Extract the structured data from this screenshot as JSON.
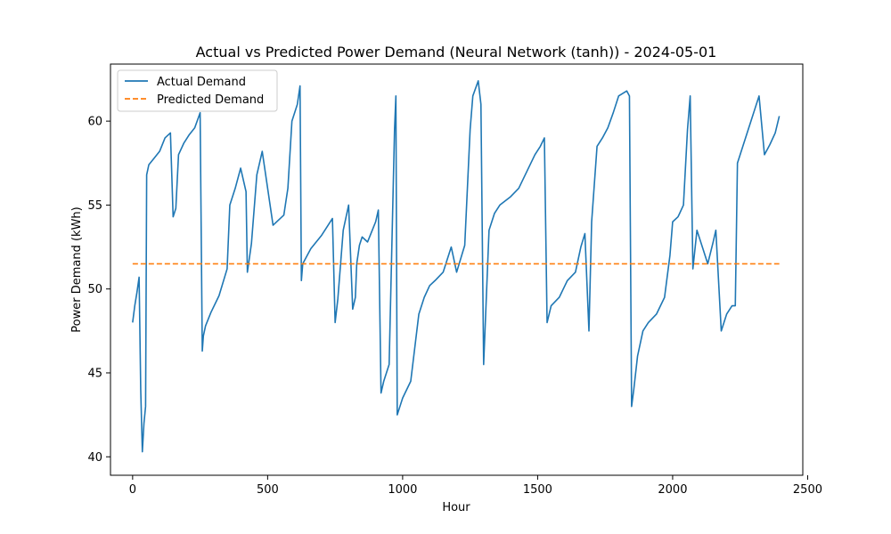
{
  "chart_data": {
    "type": "line",
    "title": "Actual vs Predicted Power Demand (Neural Network (tanh)) - 2024-05-01",
    "xlabel": "Hour",
    "ylabel": "Power Demand (kWh)",
    "xlim": [
      -82,
      2482
    ],
    "ylim": [
      38.9,
      63.4
    ],
    "xticks": [
      0,
      500,
      1000,
      1500,
      2000,
      2500
    ],
    "yticks": [
      40,
      45,
      50,
      55,
      60
    ],
    "grid": false,
    "legend_position": "top-left",
    "series": [
      {
        "name": "Actual Demand",
        "color": "#1f77b4",
        "style": "solid",
        "x": [
          0,
          8,
          16,
          24,
          30,
          36,
          42,
          48,
          52,
          60,
          80,
          100,
          120,
          140,
          150,
          160,
          170,
          190,
          210,
          230,
          250,
          258,
          262,
          270,
          290,
          320,
          350,
          360,
          380,
          400,
          420,
          425,
          440,
          460,
          470,
          480,
          520,
          560,
          575,
          590,
          610,
          620,
          625,
          630,
          660,
          700,
          740,
          750,
          760,
          780,
          800,
          815,
          825,
          830,
          840,
          850,
          870,
          900,
          910,
          920,
          930,
          950,
          970,
          975,
          980,
          990,
          1000,
          1030,
          1060,
          1080,
          1100,
          1120,
          1150,
          1180,
          1200,
          1230,
          1250,
          1260,
          1280,
          1290,
          1300,
          1320,
          1340,
          1360,
          1400,
          1430,
          1460,
          1490,
          1510,
          1525,
          1535,
          1550,
          1580,
          1610,
          1640,
          1660,
          1675,
          1690,
          1700,
          1720,
          1740,
          1760,
          1780,
          1800,
          1830,
          1840,
          1848,
          1856,
          1870,
          1890,
          1910,
          1940,
          1970,
          1990,
          2000,
          2020,
          2040,
          2055,
          2065,
          2075,
          2090,
          2110,
          2130,
          2150,
          2160,
          2180,
          2200,
          2220,
          2232,
          2240,
          2260,
          2280,
          2300,
          2320,
          2340,
          2360,
          2380,
          2395
        ],
        "y": [
          48.0,
          49.0,
          49.8,
          50.7,
          44.0,
          40.3,
          42.0,
          43.0,
          56.8,
          57.4,
          57.8,
          58.2,
          59.0,
          59.3,
          54.3,
          54.8,
          58.0,
          58.7,
          59.2,
          59.6,
          60.5,
          46.3,
          47.2,
          47.8,
          48.6,
          49.6,
          51.2,
          55.0,
          56.0,
          57.2,
          55.8,
          51.0,
          52.7,
          56.8,
          57.5,
          58.2,
          53.8,
          54.4,
          56.0,
          60.0,
          61.0,
          62.1,
          50.5,
          51.5,
          52.4,
          53.2,
          54.2,
          48.0,
          49.4,
          53.5,
          55.0,
          48.8,
          49.5,
          51.5,
          52.6,
          53.1,
          52.8,
          54.0,
          54.7,
          43.8,
          44.5,
          45.5,
          59.5,
          61.5,
          42.5,
          43.0,
          43.5,
          44.5,
          48.5,
          49.5,
          50.2,
          50.5,
          51.0,
          52.5,
          51.0,
          52.6,
          59.5,
          61.5,
          62.4,
          61.0,
          45.5,
          53.5,
          54.5,
          55.0,
          55.5,
          56.0,
          57.0,
          58.0,
          58.5,
          59.0,
          48.0,
          49.0,
          49.5,
          50.5,
          51.0,
          52.5,
          53.3,
          47.5,
          54.0,
          58.5,
          59.0,
          59.6,
          60.5,
          61.5,
          61.8,
          61.5,
          43.0,
          44.0,
          46.0,
          47.5,
          48.0,
          48.5,
          49.5,
          52.0,
          54.0,
          54.3,
          55.0,
          59.5,
          61.5,
          51.2,
          53.5,
          52.5,
          51.5,
          52.8,
          53.5,
          47.5,
          48.5,
          49.0,
          49.0,
          57.5,
          58.5,
          59.5,
          60.5,
          61.5,
          58.0,
          58.6,
          59.3,
          60.3
        ]
      },
      {
        "name": "Predicted Demand",
        "color": "#ff7f0e",
        "style": "dashed",
        "x": [
          0,
          2395
        ],
        "y": [
          51.5,
          51.5
        ]
      }
    ]
  }
}
